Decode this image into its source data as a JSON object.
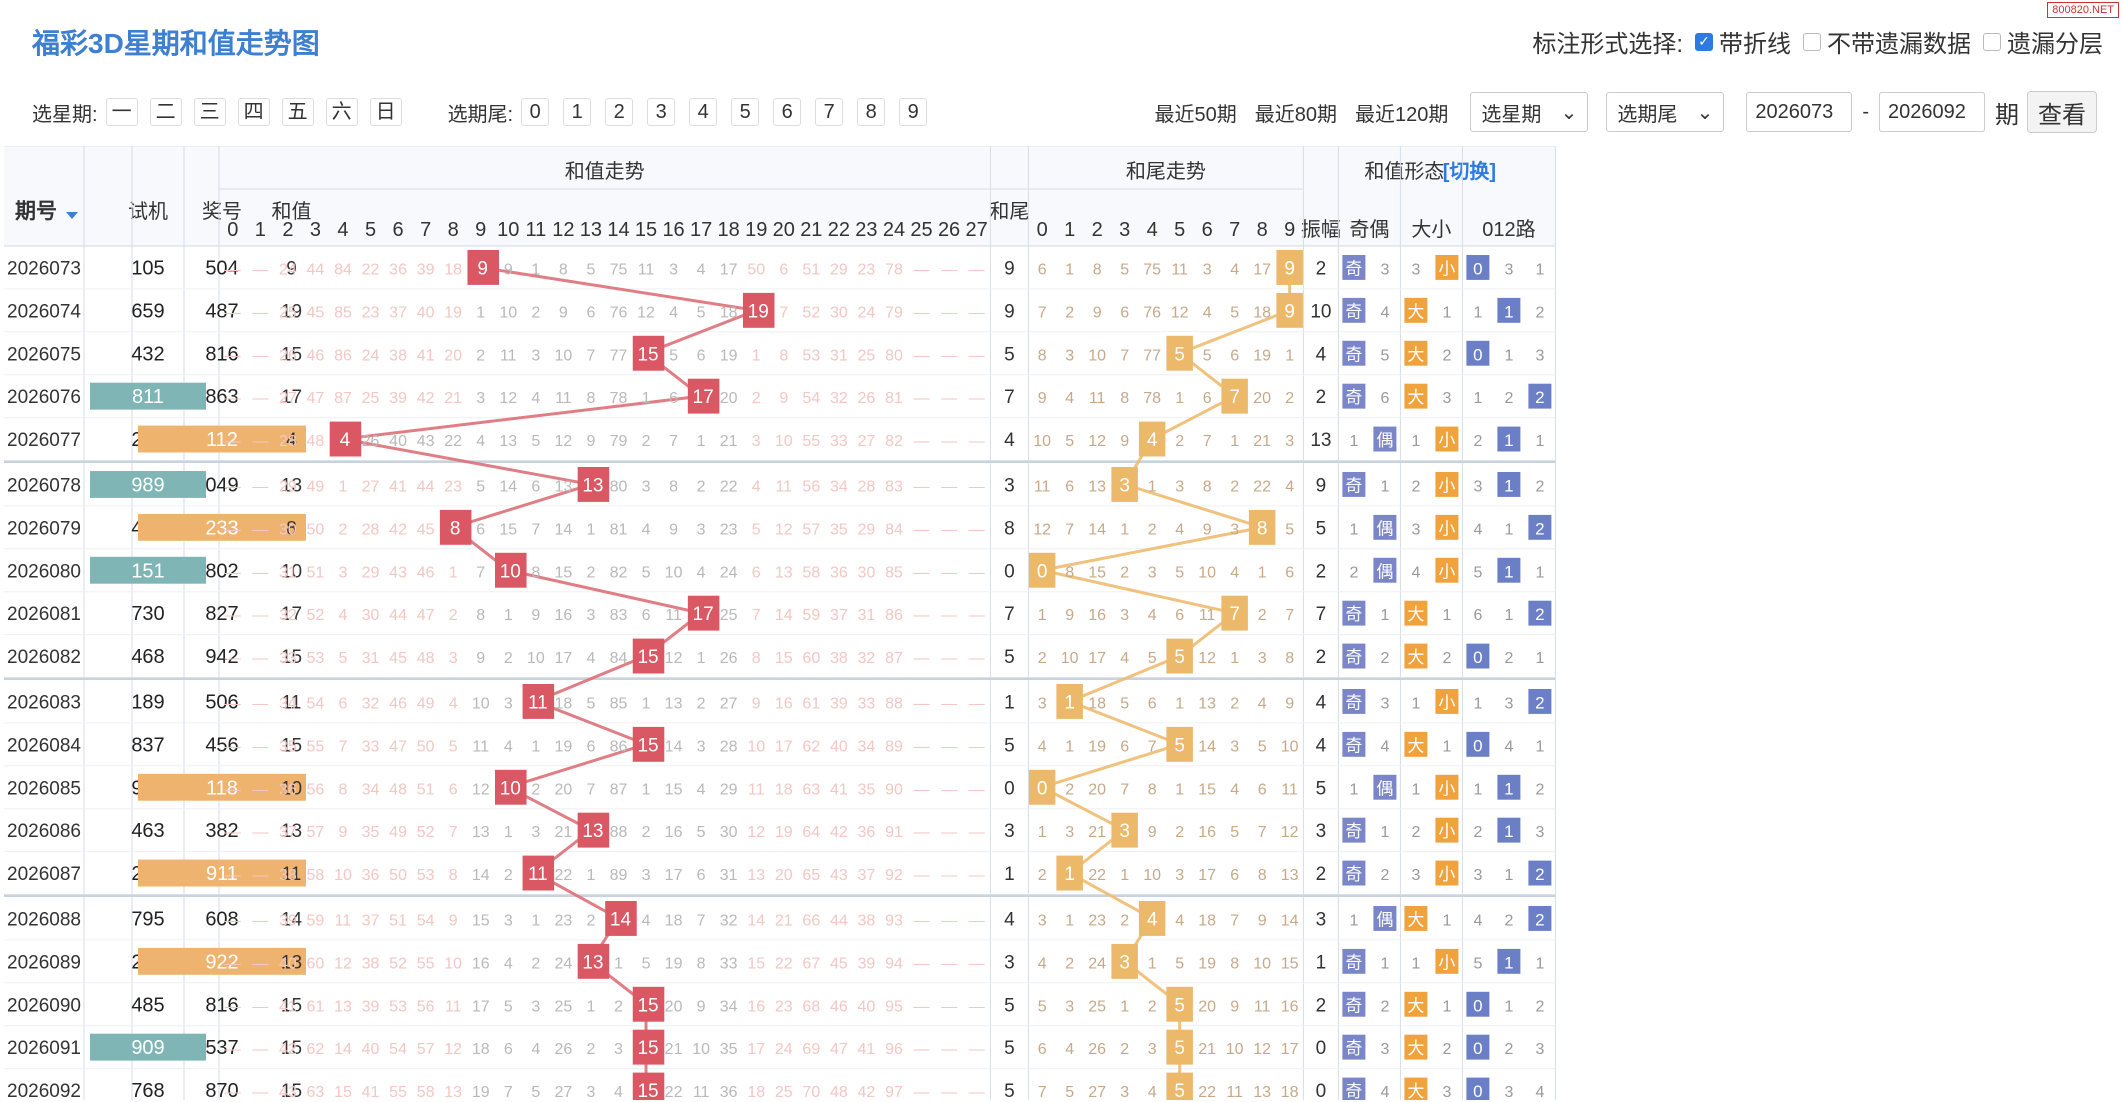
{
  "page": {
    "title": "福彩3D星期和值走势图",
    "watermark": "800820.NET"
  },
  "marker": {
    "label": "标注形式选择:",
    "options": [
      {
        "label": "带折线",
        "checked": true
      },
      {
        "label": "不带遗漏数据",
        "checked": false
      },
      {
        "label": "遗漏分层",
        "checked": false
      }
    ]
  },
  "toolbar": {
    "weekday_label": "选星期:",
    "weekdays": [
      "一",
      "二",
      "三",
      "四",
      "五",
      "六",
      "日"
    ],
    "tail_label": "选期尾:",
    "tails": [
      "0",
      "1",
      "2",
      "3",
      "4",
      "5",
      "6",
      "7",
      "8",
      "9"
    ],
    "periods": [
      "最近50期",
      "最近80期",
      "最近120期"
    ],
    "weekday_select": "选星期",
    "tail_select": "选期尾",
    "from_value": "2026073",
    "dash": "-",
    "to_value": "2026092",
    "unit": "期",
    "query_label": "查看"
  },
  "header": {
    "issue": "期号",
    "test": "试机",
    "prize": "奖号",
    "sum": "和值",
    "sum_trend": "和值走势",
    "tail": "和尾",
    "tail_trend": "和尾走势",
    "form": "和值形态",
    "switch": "[切换]",
    "amp": "振幅",
    "oe": "奇偶",
    "bs": "大小",
    "r012": "012路",
    "sum_cols": [
      "0",
      "1",
      "2",
      "3",
      "4",
      "5",
      "6",
      "7",
      "8",
      "9",
      "10",
      "11",
      "12",
      "13",
      "14",
      "15",
      "16",
      "17",
      "18",
      "19",
      "20",
      "21",
      "22",
      "23",
      "24",
      "25",
      "26",
      "27"
    ],
    "tail_cols": [
      "0",
      "1",
      "2",
      "3",
      "4",
      "5",
      "6",
      "7",
      "8",
      "9"
    ],
    "odd": "奇",
    "even": "偶",
    "big": "大",
    "small": "小",
    "r0": "0",
    "r1": "1",
    "r2": "2"
  },
  "colors": {
    "sum_hit": "#d95863",
    "tail_hit": "#ecb86a",
    "oe_box": "#7a86c7",
    "big": "#f0a33c",
    "small": "#f0a33c",
    "r_box": "#6a7fc6",
    "test_teal": "#7fb5b5",
    "prize_orange": "#eeb46f"
  },
  "rows": [
    {
      "issue": "2026073",
      "test": "105",
      "prize": "504",
      "sum": 9,
      "test_hl": false,
      "prize_hl": false,
      "sum_miss": [
        null,
        null,
        24,
        44,
        84,
        22,
        36,
        39,
        18,
        null,
        9,
        1,
        8,
        5,
        75,
        11,
        3,
        4,
        17,
        50,
        6,
        51,
        29,
        23,
        78,
        null,
        null,
        null
      ],
      "tail": 9,
      "tail_miss": [
        6,
        1,
        8,
        5,
        75,
        11,
        3,
        4,
        17,
        null
      ],
      "amp": 2,
      "oe": "odd",
      "oe_o": null,
      "oe_e": 3,
      "bs": "small",
      "bs_b": 3,
      "bs_s": null,
      "r": 0,
      "r_miss": [
        null,
        3,
        1
      ]
    },
    {
      "issue": "2026074",
      "test": "659",
      "prize": "487",
      "sum": 19,
      "test_hl": false,
      "prize_hl": false,
      "sum_miss": [
        null,
        null,
        25,
        45,
        85,
        23,
        37,
        40,
        19,
        1,
        10,
        2,
        9,
        6,
        76,
        12,
        4,
        5,
        18,
        null,
        7,
        52,
        30,
        24,
        79,
        null,
        null,
        null
      ],
      "tail": 9,
      "tail_miss": [
        7,
        2,
        9,
        6,
        76,
        12,
        4,
        5,
        18,
        null
      ],
      "amp": 10,
      "oe": "odd",
      "oe_o": null,
      "oe_e": 4,
      "bs": "big",
      "bs_b": null,
      "bs_s": 1,
      "r": 1,
      "r_miss": [
        1,
        null,
        2
      ]
    },
    {
      "issue": "2026075",
      "test": "432",
      "prize": "816",
      "sum": 15,
      "test_hl": false,
      "prize_hl": false,
      "sum_miss": [
        null,
        null,
        26,
        46,
        86,
        24,
        38,
        41,
        20,
        2,
        11,
        3,
        10,
        7,
        77,
        null,
        5,
        6,
        19,
        1,
        8,
        53,
        31,
        25,
        80,
        null,
        null,
        null
      ],
      "tail": 5,
      "tail_miss": [
        8,
        3,
        10,
        7,
        77,
        null,
        5,
        6,
        19,
        1
      ],
      "amp": 4,
      "oe": "odd",
      "oe_o": null,
      "oe_e": 5,
      "bs": "big",
      "bs_b": null,
      "bs_s": 2,
      "r": 0,
      "r_miss": [
        null,
        1,
        3
      ]
    },
    {
      "issue": "2026076",
      "test": "811",
      "prize": "863",
      "sum": 17,
      "test_hl": true,
      "prize_hl": false,
      "sum_miss": [
        null,
        null,
        27,
        47,
        87,
        25,
        39,
        42,
        21,
        3,
        12,
        4,
        11,
        8,
        78,
        1,
        6,
        null,
        20,
        2,
        9,
        54,
        32,
        26,
        81,
        null,
        null,
        null
      ],
      "tail": 7,
      "tail_miss": [
        9,
        4,
        11,
        8,
        78,
        1,
        6,
        null,
        20,
        2
      ],
      "amp": 2,
      "oe": "odd",
      "oe_o": null,
      "oe_e": 6,
      "bs": "big",
      "bs_b": null,
      "bs_s": 3,
      "r": 2,
      "r_miss": [
        1,
        2,
        null
      ]
    },
    {
      "issue": "2026077",
      "test": "245",
      "prize": "112",
      "sum": 4,
      "test_hl": false,
      "prize_hl": true,
      "sum_miss": [
        null,
        null,
        28,
        48,
        null,
        26,
        40,
        43,
        22,
        4,
        13,
        5,
        12,
        9,
        79,
        2,
        7,
        1,
        21,
        3,
        10,
        55,
        33,
        27,
        82,
        null,
        null,
        null
      ],
      "tail": 4,
      "tail_miss": [
        10,
        5,
        12,
        9,
        null,
        2,
        7,
        1,
        21,
        3
      ],
      "amp": 13,
      "oe": "even",
      "oe_o": 1,
      "oe_e": null,
      "bs": "small",
      "bs_b": 1,
      "bs_s": null,
      "r": 1,
      "r_miss": [
        2,
        null,
        1
      ]
    },
    {
      "issue": "2026078",
      "test": "989",
      "prize": "049",
      "sum": 13,
      "test_hl": true,
      "prize_hl": false,
      "sum_miss": [
        null,
        null,
        29,
        49,
        1,
        27,
        41,
        44,
        23,
        5,
        14,
        6,
        13,
        null,
        80,
        3,
        8,
        2,
        22,
        4,
        11,
        56,
        34,
        28,
        83,
        null,
        null,
        null
      ],
      "tail": 3,
      "tail_miss": [
        11,
        6,
        13,
        null,
        1,
        3,
        8,
        2,
        22,
        4
      ],
      "amp": 9,
      "oe": "odd",
      "oe_o": null,
      "oe_e": 1,
      "bs": "small",
      "bs_b": 2,
      "bs_s": null,
      "r": 1,
      "r_miss": [
        3,
        null,
        2
      ]
    },
    {
      "issue": "2026079",
      "test": "406",
      "prize": "233",
      "sum": 8,
      "test_hl": false,
      "prize_hl": true,
      "sum_miss": [
        null,
        null,
        30,
        50,
        2,
        28,
        42,
        45,
        null,
        6,
        15,
        7,
        14,
        1,
        81,
        4,
        9,
        3,
        23,
        5,
        12,
        57,
        35,
        29,
        84,
        null,
        null,
        null
      ],
      "tail": 8,
      "tail_miss": [
        12,
        7,
        14,
        1,
        2,
        4,
        9,
        3,
        null,
        5
      ],
      "amp": 5,
      "oe": "even",
      "oe_o": 1,
      "oe_e": null,
      "bs": "small",
      "bs_b": 3,
      "bs_s": null,
      "r": 2,
      "r_miss": [
        4,
        1,
        null
      ]
    },
    {
      "issue": "2026080",
      "test": "151",
      "prize": "802",
      "sum": 10,
      "test_hl": true,
      "prize_hl": false,
      "sum_miss": [
        null,
        null,
        31,
        51,
        3,
        29,
        43,
        46,
        1,
        7,
        null,
        8,
        15,
        2,
        82,
        5,
        10,
        4,
        24,
        6,
        13,
        58,
        36,
        30,
        85,
        null,
        null,
        null
      ],
      "tail": 0,
      "tail_miss": [
        null,
        8,
        15,
        2,
        3,
        5,
        10,
        4,
        1,
        6
      ],
      "amp": 2,
      "oe": "even",
      "oe_o": 2,
      "oe_e": null,
      "bs": "small",
      "bs_b": 4,
      "bs_s": null,
      "r": 1,
      "r_miss": [
        5,
        null,
        1
      ]
    },
    {
      "issue": "2026081",
      "test": "730",
      "prize": "827",
      "sum": 17,
      "test_hl": false,
      "prize_hl": false,
      "sum_miss": [
        null,
        null,
        32,
        52,
        4,
        30,
        44,
        47,
        2,
        8,
        1,
        9,
        16,
        3,
        83,
        6,
        11,
        null,
        25,
        7,
        14,
        59,
        37,
        31,
        86,
        null,
        null,
        null
      ],
      "tail": 7,
      "tail_miss": [
        1,
        9,
        16,
        3,
        4,
        6,
        11,
        null,
        2,
        7
      ],
      "amp": 7,
      "oe": "odd",
      "oe_o": null,
      "oe_e": 1,
      "bs": "big",
      "bs_b": null,
      "bs_s": 1,
      "r": 2,
      "r_miss": [
        6,
        1,
        null
      ]
    },
    {
      "issue": "2026082",
      "test": "468",
      "prize": "942",
      "sum": 15,
      "test_hl": false,
      "prize_hl": false,
      "sum_miss": [
        null,
        null,
        33,
        53,
        5,
        31,
        45,
        48,
        3,
        9,
        2,
        10,
        17,
        4,
        84,
        null,
        12,
        1,
        26,
        8,
        15,
        60,
        38,
        32,
        87,
        null,
        null,
        null
      ],
      "tail": 5,
      "tail_miss": [
        2,
        10,
        17,
        4,
        5,
        null,
        12,
        1,
        3,
        8
      ],
      "amp": 2,
      "oe": "odd",
      "oe_o": null,
      "oe_e": 2,
      "bs": "big",
      "bs_b": null,
      "bs_s": 2,
      "r": 0,
      "r_miss": [
        null,
        2,
        1
      ]
    },
    {
      "issue": "2026083",
      "test": "189",
      "prize": "506",
      "sum": 11,
      "test_hl": false,
      "prize_hl": false,
      "sum_miss": [
        null,
        null,
        34,
        54,
        6,
        32,
        46,
        49,
        4,
        10,
        3,
        null,
        18,
        5,
        85,
        1,
        13,
        2,
        27,
        9,
        16,
        61,
        39,
        33,
        88,
        null,
        null,
        null
      ],
      "tail": 1,
      "tail_miss": [
        3,
        null,
        18,
        5,
        6,
        1,
        13,
        2,
        4,
        9
      ],
      "amp": 4,
      "oe": "odd",
      "oe_o": null,
      "oe_e": 3,
      "bs": "small",
      "bs_b": 1,
      "bs_s": null,
      "r": 2,
      "r_miss": [
        1,
        3,
        null
      ]
    },
    {
      "issue": "2026084",
      "test": "837",
      "prize": "456",
      "sum": 15,
      "test_hl": false,
      "prize_hl": false,
      "sum_miss": [
        null,
        null,
        35,
        55,
        7,
        33,
        47,
        50,
        5,
        11,
        4,
        1,
        19,
        6,
        86,
        null,
        14,
        3,
        28,
        10,
        17,
        62,
        40,
        34,
        89,
        null,
        null,
        null
      ],
      "tail": 5,
      "tail_miss": [
        4,
        1,
        19,
        6,
        7,
        null,
        14,
        3,
        5,
        10
      ],
      "amp": 4,
      "oe": "odd",
      "oe_o": null,
      "oe_e": 4,
      "bs": "big",
      "bs_b": null,
      "bs_s": 1,
      "r": 0,
      "r_miss": [
        null,
        4,
        1
      ]
    },
    {
      "issue": "2026085",
      "test": "902",
      "prize": "118",
      "sum": 10,
      "test_hl": false,
      "prize_hl": true,
      "sum_miss": [
        null,
        null,
        36,
        56,
        8,
        34,
        48,
        51,
        6,
        12,
        null,
        2,
        20,
        7,
        87,
        1,
        15,
        4,
        29,
        11,
        18,
        63,
        41,
        35,
        90,
        null,
        null,
        null
      ],
      "tail": 0,
      "tail_miss": [
        null,
        2,
        20,
        7,
        8,
        1,
        15,
        4,
        6,
        11
      ],
      "amp": 5,
      "oe": "even",
      "oe_o": 1,
      "oe_e": null,
      "bs": "small",
      "bs_b": 1,
      "bs_s": null,
      "r": 1,
      "r_miss": [
        1,
        null,
        2
      ]
    },
    {
      "issue": "2026086",
      "test": "463",
      "prize": "382",
      "sum": 13,
      "test_hl": false,
      "prize_hl": false,
      "sum_miss": [
        null,
        null,
        37,
        57,
        9,
        35,
        49,
        52,
        7,
        13,
        1,
        3,
        21,
        null,
        88,
        2,
        16,
        5,
        30,
        12,
        19,
        64,
        42,
        36,
        91,
        null,
        null,
        null
      ],
      "tail": 3,
      "tail_miss": [
        1,
        3,
        21,
        null,
        9,
        2,
        16,
        5,
        7,
        12
      ],
      "amp": 3,
      "oe": "odd",
      "oe_o": null,
      "oe_e": 1,
      "bs": "small",
      "bs_b": 2,
      "bs_s": null,
      "r": 1,
      "r_miss": [
        2,
        null,
        3
      ]
    },
    {
      "issue": "2026087",
      "test": "208",
      "prize": "911",
      "sum": 11,
      "test_hl": false,
      "prize_hl": true,
      "sum_miss": [
        null,
        null,
        38,
        58,
        10,
        36,
        50,
        53,
        8,
        14,
        2,
        null,
        22,
        1,
        89,
        3,
        17,
        6,
        31,
        13,
        20,
        65,
        43,
        37,
        92,
        null,
        null,
        null
      ],
      "tail": 1,
      "tail_miss": [
        2,
        null,
        22,
        1,
        10,
        3,
        17,
        6,
        8,
        13
      ],
      "amp": 2,
      "oe": "odd",
      "oe_o": null,
      "oe_e": 2,
      "bs": "small",
      "bs_b": 3,
      "bs_s": null,
      "r": 2,
      "r_miss": [
        3,
        1,
        null
      ]
    },
    {
      "issue": "2026088",
      "test": "795",
      "prize": "608",
      "sum": 14,
      "test_hl": false,
      "prize_hl": false,
      "sum_miss": [
        null,
        null,
        39,
        59,
        11,
        37,
        51,
        54,
        9,
        15,
        3,
        1,
        23,
        2,
        null,
        4,
        18,
        7,
        32,
        14,
        21,
        66,
        44,
        38,
        93,
        null,
        null,
        null
      ],
      "tail": 4,
      "tail_miss": [
        3,
        1,
        23,
        2,
        null,
        4,
        18,
        7,
        9,
        14
      ],
      "amp": 3,
      "oe": "even",
      "oe_o": 1,
      "oe_e": null,
      "bs": "big",
      "bs_b": null,
      "bs_s": 1,
      "r": 2,
      "r_miss": [
        4,
        2,
        null
      ]
    },
    {
      "issue": "2026089",
      "test": "261",
      "prize": "922",
      "sum": 13,
      "test_hl": false,
      "prize_hl": true,
      "sum_miss": [
        null,
        null,
        40,
        60,
        12,
        38,
        52,
        55,
        10,
        16,
        4,
        2,
        24,
        null,
        1,
        5,
        19,
        8,
        33,
        15,
        22,
        67,
        45,
        39,
        94,
        null,
        null,
        null
      ],
      "tail": 3,
      "tail_miss": [
        4,
        2,
        24,
        null,
        1,
        5,
        19,
        8,
        10,
        15
      ],
      "amp": 1,
      "oe": "odd",
      "oe_o": null,
      "oe_e": 1,
      "bs": "small",
      "bs_b": 1,
      "bs_s": null,
      "r": 1,
      "r_miss": [
        5,
        null,
        1
      ]
    },
    {
      "issue": "2026090",
      "test": "485",
      "prize": "816",
      "sum": 15,
      "test_hl": false,
      "prize_hl": false,
      "sum_miss": [
        null,
        null,
        41,
        61,
        13,
        39,
        53,
        56,
        11,
        17,
        5,
        3,
        25,
        1,
        2,
        null,
        20,
        9,
        34,
        16,
        23,
        68,
        46,
        40,
        95,
        null,
        null,
        null
      ],
      "tail": 5,
      "tail_miss": [
        5,
        3,
        25,
        1,
        2,
        null,
        20,
        9,
        11,
        16
      ],
      "amp": 2,
      "oe": "odd",
      "oe_o": null,
      "oe_e": 2,
      "bs": "big",
      "bs_b": null,
      "bs_s": 1,
      "r": 0,
      "r_miss": [
        null,
        1,
        2
      ]
    },
    {
      "issue": "2026091",
      "test": "909",
      "prize": "537",
      "sum": 15,
      "test_hl": true,
      "prize_hl": false,
      "sum_miss": [
        null,
        null,
        42,
        62,
        14,
        40,
        54,
        57,
        12,
        18,
        6,
        4,
        26,
        2,
        3,
        null,
        21,
        10,
        35,
        17,
        24,
        69,
        47,
        41,
        96,
        null,
        null,
        null
      ],
      "tail": 5,
      "tail_miss": [
        6,
        4,
        26,
        2,
        3,
        null,
        21,
        10,
        12,
        17
      ],
      "amp": 0,
      "oe": "odd",
      "oe_o": null,
      "oe_e": 3,
      "bs": "big",
      "bs_b": null,
      "bs_s": 2,
      "r": 0,
      "r_miss": [
        null,
        2,
        3
      ]
    },
    {
      "issue": "2026092",
      "test": "768",
      "prize": "870",
      "sum": 15,
      "test_hl": false,
      "prize_hl": false,
      "sum_miss": [
        null,
        null,
        43,
        63,
        15,
        41,
        55,
        58,
        13,
        19,
        7,
        5,
        27,
        3,
        4,
        null,
        22,
        11,
        36,
        18,
        25,
        70,
        48,
        42,
        97,
        null,
        null,
        null
      ],
      "tail": 5,
      "tail_miss": [
        7,
        5,
        27,
        3,
        4,
        null,
        22,
        11,
        13,
        18
      ],
      "amp": 0,
      "oe": "odd",
      "oe_o": null,
      "oe_e": 4,
      "bs": "big",
      "bs_b": null,
      "bs_s": 3,
      "r": 0,
      "r_miss": [
        null,
        3,
        4
      ]
    }
  ]
}
